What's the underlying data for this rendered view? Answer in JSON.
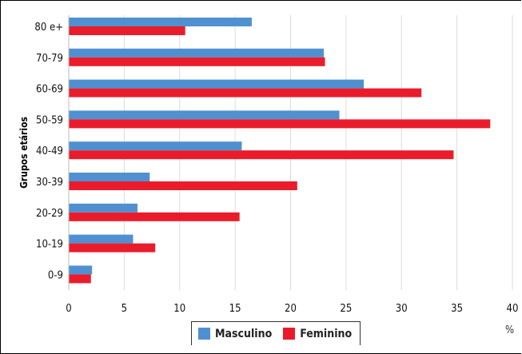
{
  "chart_data": {
    "type": "bar",
    "orientation": "horizontal",
    "categories": [
      "80 e+",
      "70-79",
      "60-69",
      "50-59",
      "40-49",
      "30-39",
      "20-29",
      "10-19",
      "0-9"
    ],
    "series": [
      {
        "name": "Masculino",
        "color": "#4f91d0",
        "values": [
          16.5,
          23.0,
          26.6,
          24.4,
          15.6,
          7.3,
          6.2,
          5.8,
          2.1
        ]
      },
      {
        "name": "Feminino",
        "color": "#ea1c2b",
        "values": [
          10.5,
          23.1,
          31.8,
          38.0,
          34.7,
          20.6,
          15.4,
          7.8,
          2.0
        ]
      }
    ],
    "xlim": [
      0,
      40
    ],
    "xticks": [
      "0",
      "5",
      "10",
      "15",
      "20",
      "25",
      "30",
      "35",
      "40"
    ],
    "ylabel": "Grupos etários",
    "xunit": "%",
    "grid": "vertical",
    "legend": "bottom"
  }
}
